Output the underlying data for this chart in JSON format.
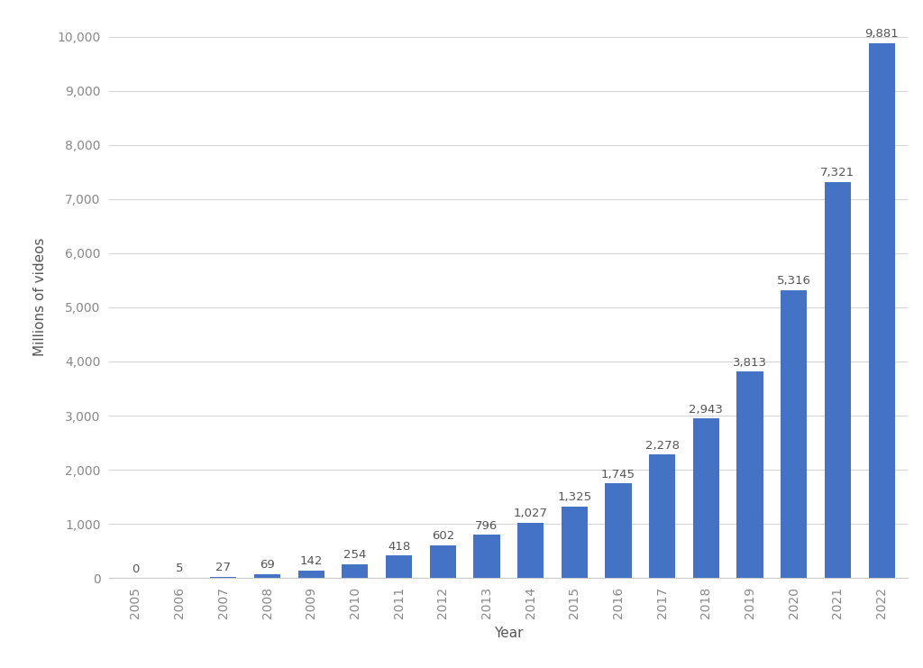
{
  "years": [
    2005,
    2006,
    2007,
    2008,
    2009,
    2010,
    2011,
    2012,
    2013,
    2014,
    2015,
    2016,
    2017,
    2018,
    2019,
    2020,
    2021,
    2022
  ],
  "values": [
    0,
    5,
    27,
    69,
    142,
    254,
    418,
    602,
    796,
    1027,
    1325,
    1745,
    2278,
    2943,
    3813,
    5316,
    7321,
    9881
  ],
  "bar_color": "#4472C4",
  "xlabel": "Year",
  "ylabel": "Millions of videos",
  "ylim": [
    0,
    10400
  ],
  "yticks": [
    0,
    1000,
    2000,
    3000,
    4000,
    5000,
    6000,
    7000,
    8000,
    9000,
    10000
  ],
  "ytick_labels": [
    "0",
    "1,000",
    "2,000",
    "3,000",
    "4,000",
    "5,000",
    "6,000",
    "7,000",
    "8,000",
    "9,000",
    "10,000"
  ],
  "background_color": "#ffffff",
  "plot_bg_color": "#f8f8f8",
  "grid_color": "#d5d5d5",
  "label_fontsize": 9.5,
  "axis_label_fontsize": 11,
  "tick_fontsize": 10,
  "bar_width": 0.6,
  "label_color": "#555555",
  "tick_color": "#888888"
}
